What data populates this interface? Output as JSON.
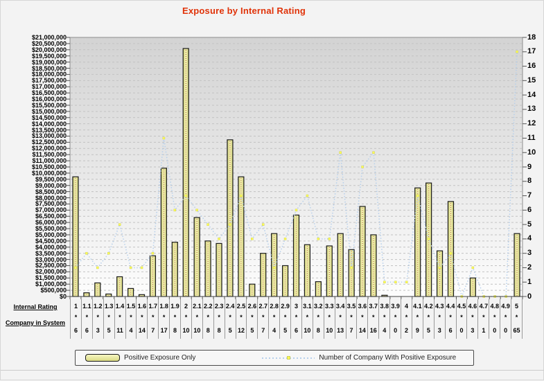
{
  "title": "Exposure by Internal Rating",
  "chart_data": {
    "type": "combo-bar-line",
    "title": "Exposure by Internal Rating",
    "categories": [
      "1",
      "1.1",
      "1.2",
      "1.3",
      "1.4",
      "1.5",
      "1.6",
      "1.7",
      "1.8",
      "1.9",
      "2",
      "2.1",
      "2.2",
      "2.3",
      "2.4",
      "2.5",
      "2.6",
      "2.7",
      "2.8",
      "2.9",
      "3",
      "3.1",
      "3.2",
      "3.3",
      "3.4",
      "3.5",
      "3.6",
      "3.7",
      "3.8",
      "3.9",
      "4",
      "4.1",
      "4.2",
      "4.3",
      "4.4",
      "4.5",
      "4.6",
      "4.7",
      "4.8",
      "4.9",
      "5"
    ],
    "series": [
      {
        "name": "Positive Exposure Only",
        "type": "bar",
        "axis": "left",
        "values": [
          9700000,
          300000,
          1100000,
          200000,
          1600000,
          650000,
          150000,
          3300000,
          10400000,
          4400000,
          20100000,
          6400000,
          4500000,
          4300000,
          12700000,
          9700000,
          1000000,
          3500000,
          5100000,
          2500000,
          6600000,
          4200000,
          1200000,
          4100000,
          5100000,
          3800000,
          7300000,
          5000000,
          100000,
          0,
          0,
          8800000,
          9200000,
          3700000,
          7700000,
          0,
          1500000,
          0,
          0,
          0,
          5100000
        ]
      },
      {
        "name": "Number of Company With Positive Exposure",
        "type": "line",
        "axis": "right",
        "values": [
          2,
          3,
          2,
          3,
          5,
          2,
          2,
          3,
          11,
          6,
          7,
          6,
          5,
          4,
          5,
          7,
          4,
          5,
          2,
          4,
          6,
          7,
          4,
          4,
          10,
          2,
          9,
          10,
          1,
          1,
          1,
          7,
          4,
          2,
          3,
          0,
          2,
          0,
          0,
          0,
          17
        ]
      }
    ],
    "y_left": {
      "min": 0,
      "max": 21000000,
      "step": 500000,
      "format": "usd"
    },
    "y_right": {
      "min": 0,
      "max": 18,
      "step": 1
    },
    "grid": "horizontal-dashed",
    "legend_position": "bottom",
    "xlabel": "Internal Rating",
    "ylabel": ""
  },
  "x_table": {
    "rating_header": "Internal Rating",
    "company_header": "Company in System",
    "flag_symbol": "*",
    "companies_in_system": [
      6,
      6,
      3,
      5,
      11,
      4,
      14,
      7,
      17,
      8,
      10,
      10,
      8,
      8,
      5,
      12,
      5,
      7,
      4,
      5,
      6,
      10,
      8,
      10,
      13,
      7,
      14,
      16,
      4,
      0,
      2,
      9,
      5,
      3,
      6,
      0,
      3,
      1,
      0,
      0,
      65
    ]
  },
  "legend": {
    "bar_label": "Positive Exposure Only",
    "line_label": "Number of Company With Positive Exposure"
  },
  "colors": {
    "title": "#e03208",
    "bar_fill": "#ecec9e",
    "bar_border": "#1a1a1a",
    "bar_center_dots": "#aa5533",
    "line": "#b5cfec",
    "marker": "#ffff55",
    "plot_gradient_top": "#d3d3d3",
    "plot_gradient_bottom": "#fdfdfd",
    "gridline": "#c2c2c2",
    "axis": "#8c8c8c"
  }
}
